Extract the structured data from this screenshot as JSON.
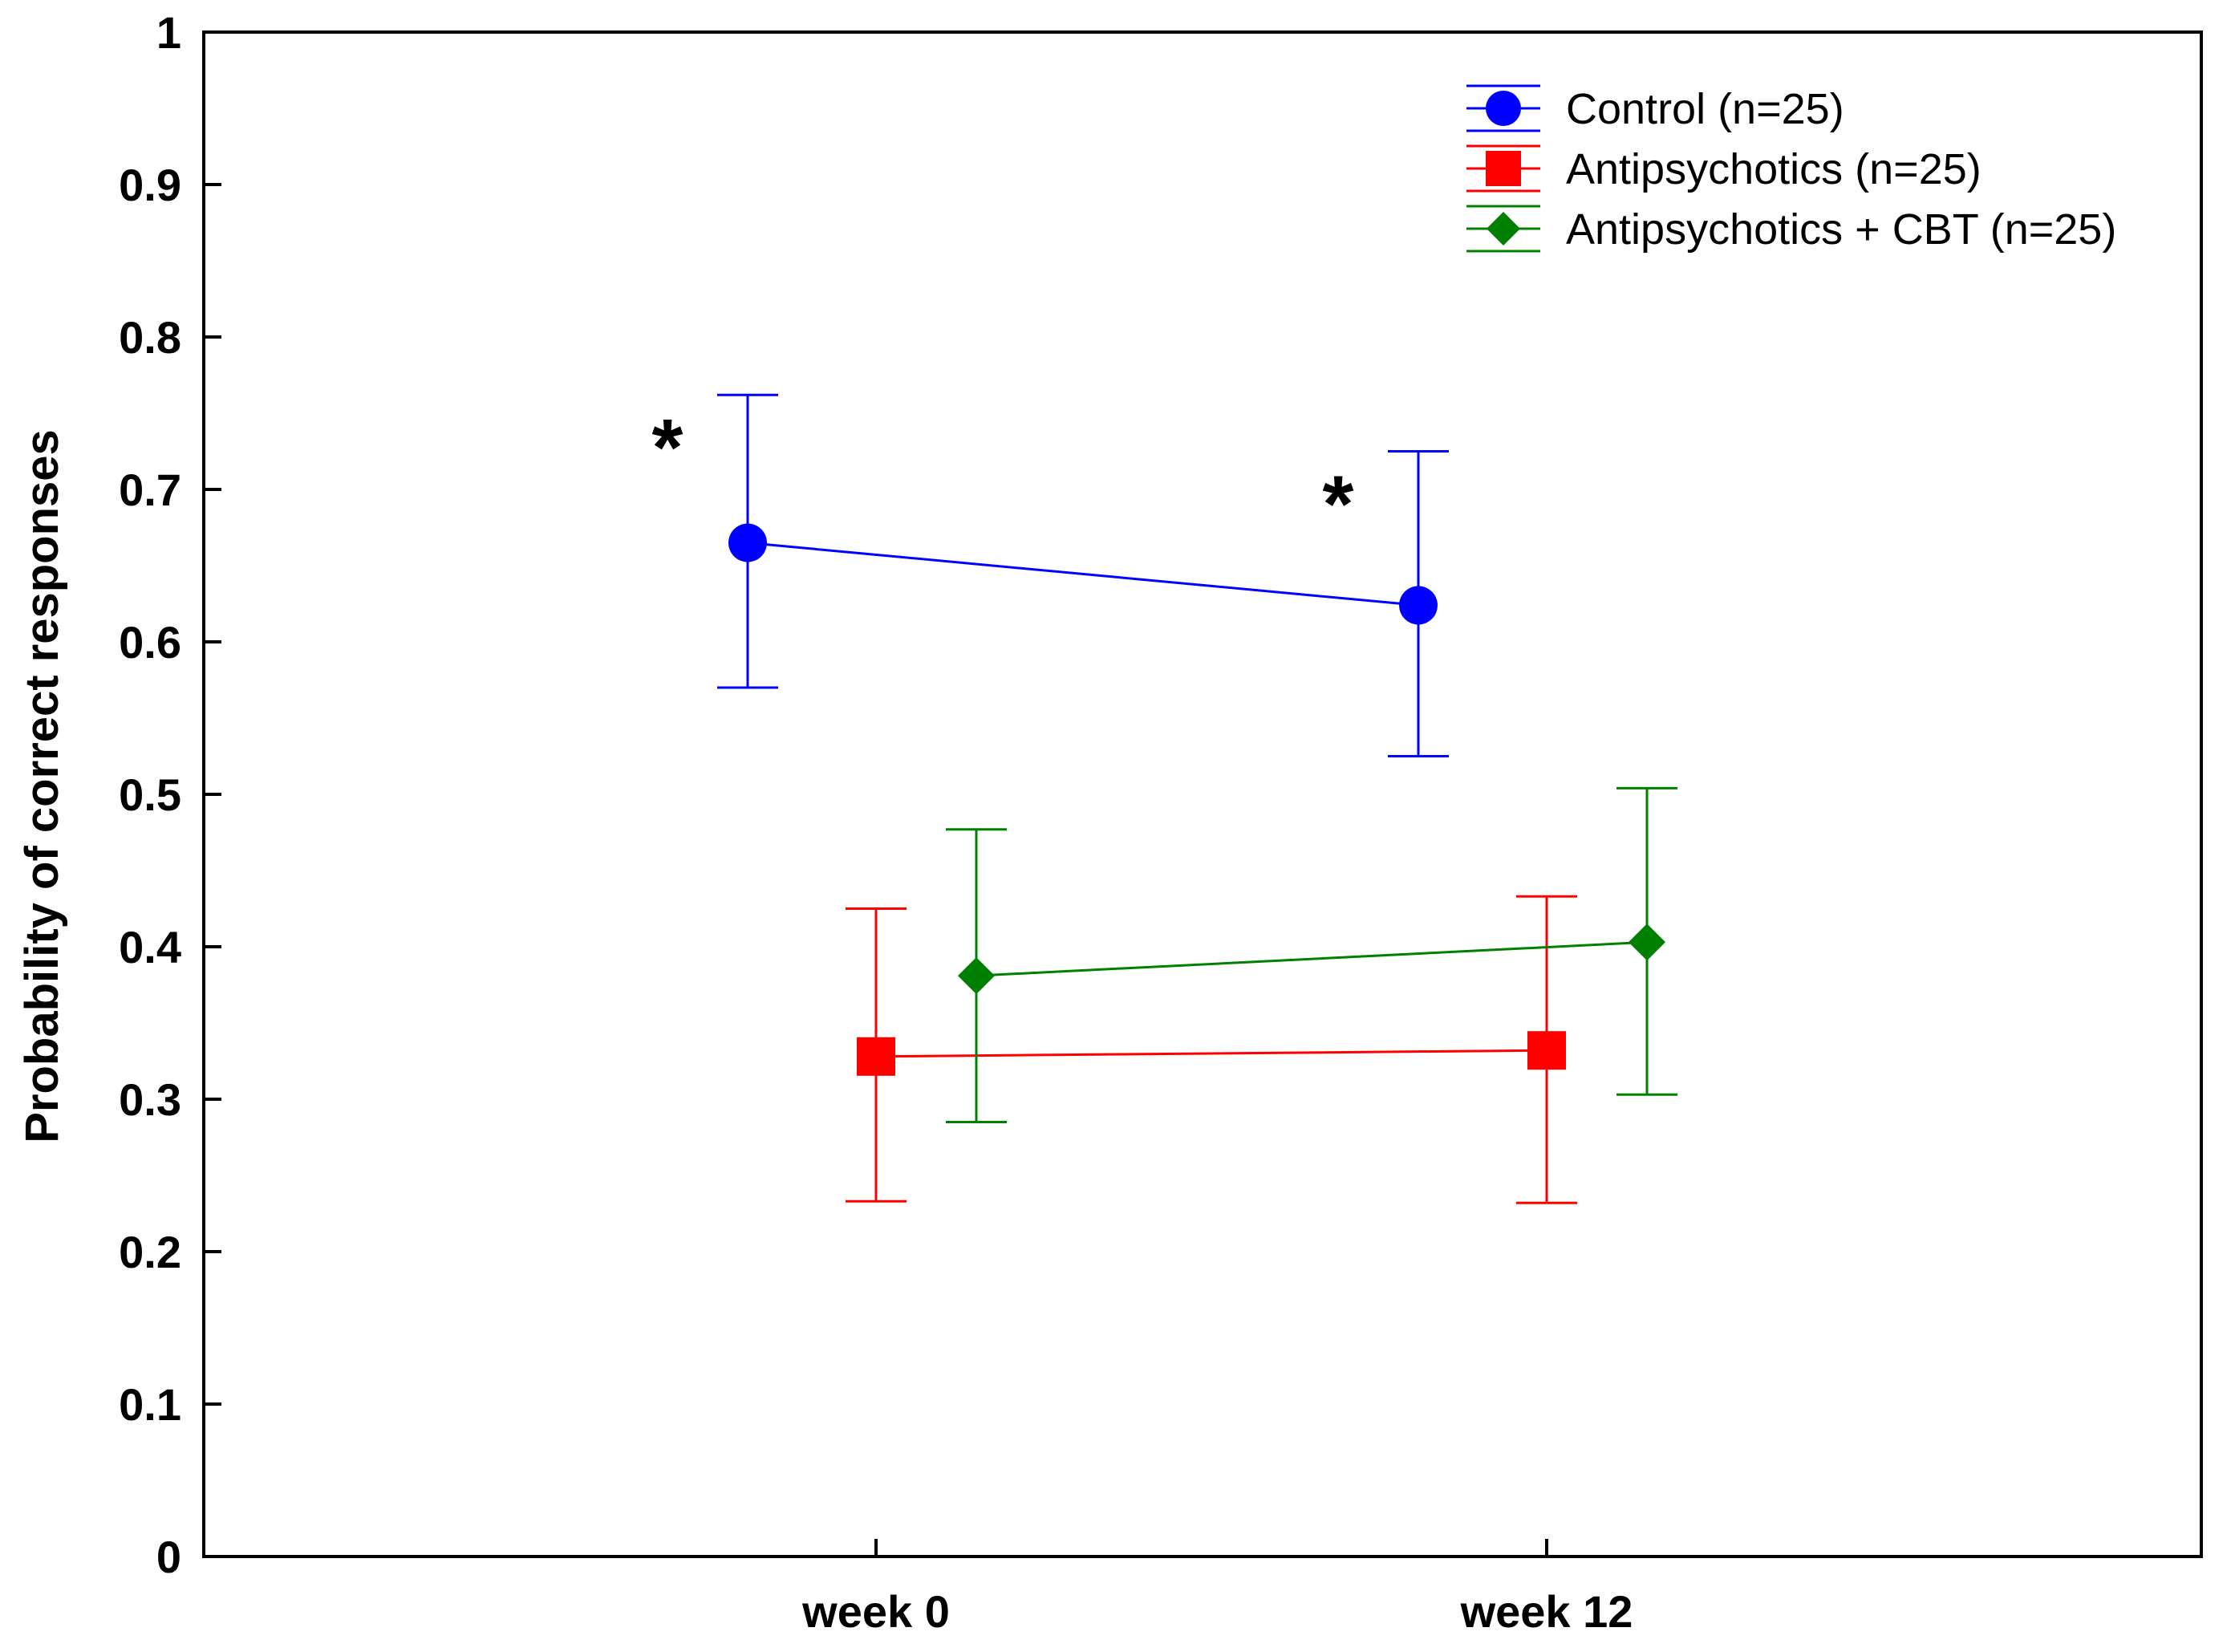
{
  "chart_data": {
    "type": "line",
    "title": "",
    "xlabel": "",
    "ylabel": "Probability of correct responses",
    "categories": [
      "week 0",
      "week 12"
    ],
    "ylim": [
      0,
      1
    ],
    "yticks": [
      "0",
      "0.1",
      "0.2",
      "0.3",
      "0.4",
      "0.5",
      "0.6",
      "0.7",
      "0.8",
      "0.9",
      "1"
    ],
    "grid": false,
    "legend_position": "top-right",
    "series": [
      {
        "name": "Control (n=25)",
        "color": "#0000ff",
        "marker": "circle",
        "values": [
          0.665,
          0.624
        ],
        "upper": [
          0.762,
          0.725
        ],
        "lower": [
          0.57,
          0.525
        ]
      },
      {
        "name": "Antipsychotics (n=25)",
        "color": "#ff0000",
        "marker": "square",
        "values": [
          0.328,
          0.332
        ],
        "upper": [
          0.425,
          0.433
        ],
        "lower": [
          0.233,
          0.232
        ]
      },
      {
        "name": "Antipsychotics + CBT (n=25)",
        "color": "#008000",
        "marker": "diamond",
        "values": [
          0.381,
          0.403
        ],
        "upper": [
          0.477,
          0.504
        ],
        "lower": [
          0.285,
          0.303
        ]
      }
    ],
    "annotations": [
      {
        "text": "*",
        "category": "week 0",
        "series": "Control (n=25)"
      },
      {
        "text": "*",
        "category": "week 12",
        "series": "Control (n=25)"
      }
    ]
  }
}
